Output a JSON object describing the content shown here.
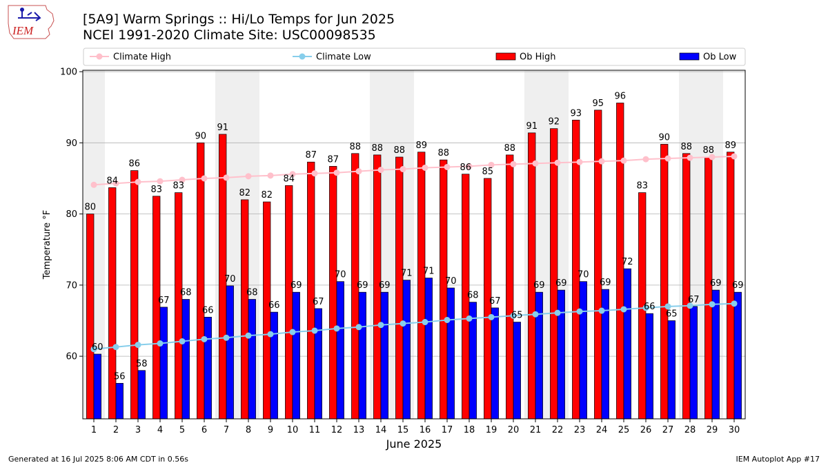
{
  "header": {
    "title_line1": "[5A9] Warm Springs :: Hi/Lo Temps for Jun 2025",
    "title_line2": "NCEI 1991-2020 Climate Site: USC00098535"
  },
  "logo": {
    "text": "IEM"
  },
  "footer": {
    "generated": "Generated at 16 Jul 2025 8:06 AM CDT in 0.56s",
    "app": "IEM Autoplot App #17"
  },
  "chart_data": {
    "type": "bar",
    "xlabel": "June 2025",
    "ylabel": "Temperature °F",
    "ylim": [
      51.2,
      100.2
    ],
    "yticks": [
      60,
      70,
      80,
      90,
      100
    ],
    "grid": true,
    "legend_position": "top",
    "categories": [
      "1",
      "2",
      "3",
      "4",
      "5",
      "6",
      "7",
      "8",
      "9",
      "10",
      "11",
      "12",
      "13",
      "14",
      "15",
      "16",
      "17",
      "18",
      "19",
      "20",
      "21",
      "22",
      "23",
      "24",
      "25",
      "26",
      "27",
      "28",
      "29",
      "30"
    ],
    "weekend_shading": [
      [
        1,
        1
      ],
      [
        7,
        8
      ],
      [
        14,
        15
      ],
      [
        21,
        22
      ],
      [
        28,
        29
      ]
    ],
    "colors": {
      "ob_high": "#ff0000",
      "ob_low": "#0000ff",
      "climate_high": "#ffc0cb",
      "climate_low": "#87ceeb",
      "shade": "#efefef",
      "grid": "#b0b0b0"
    },
    "series": [
      {
        "name": "Climate High",
        "kind": "line",
        "values": [
          84.1,
          84.3,
          84.5,
          84.6,
          84.8,
          85.0,
          85.1,
          85.3,
          85.4,
          85.6,
          85.7,
          85.8,
          86.0,
          86.2,
          86.3,
          86.5,
          86.6,
          86.7,
          86.9,
          87.0,
          87.1,
          87.2,
          87.3,
          87.4,
          87.5,
          87.7,
          87.8,
          87.9,
          88.0,
          88.1
        ]
      },
      {
        "name": "Climate Low",
        "kind": "line",
        "values": [
          61.0,
          61.3,
          61.6,
          61.8,
          62.1,
          62.4,
          62.6,
          62.9,
          63.1,
          63.4,
          63.6,
          63.9,
          64.1,
          64.4,
          64.6,
          64.8,
          65.1,
          65.3,
          65.5,
          65.7,
          65.9,
          66.1,
          66.3,
          66.4,
          66.6,
          66.8,
          67.0,
          67.1,
          67.3,
          67.4
        ]
      },
      {
        "name": "Ob High",
        "kind": "bar",
        "values": [
          80,
          84,
          86,
          83,
          83,
          90,
          91,
          82,
          82,
          84,
          87,
          87,
          88,
          88,
          88,
          89,
          88,
          86,
          85,
          88,
          91,
          92,
          93,
          95,
          96,
          83,
          90,
          88,
          88,
          89
        ],
        "bar_heights": [
          80,
          83.7,
          86.1,
          82.5,
          83.0,
          90.0,
          91.2,
          82.0,
          81.7,
          84.0,
          87.3,
          86.7,
          88.5,
          88.3,
          88.0,
          88.7,
          87.6,
          85.6,
          85.0,
          88.3,
          91.4,
          92.0,
          93.2,
          94.6,
          95.6,
          83.0,
          89.8,
          88.5,
          88.0,
          88.7
        ]
      },
      {
        "name": "Ob Low",
        "kind": "bar",
        "values": [
          60,
          56,
          58,
          67,
          68,
          66,
          70,
          68,
          66,
          69,
          67,
          70,
          69,
          69,
          71,
          71,
          70,
          68,
          67,
          65,
          69,
          69,
          70,
          69,
          72,
          66,
          65,
          67,
          69,
          69
        ],
        "bar_heights": [
          60.3,
          56.2,
          58.0,
          66.9,
          68.0,
          65.5,
          69.9,
          68.0,
          66.2,
          69.0,
          66.7,
          70.5,
          69.0,
          69.0,
          70.7,
          71.0,
          69.6,
          67.6,
          66.8,
          64.8,
          69.0,
          69.3,
          70.5,
          69.4,
          72.3,
          66.0,
          65.0,
          67.0,
          69.3,
          69.0
        ]
      }
    ]
  }
}
